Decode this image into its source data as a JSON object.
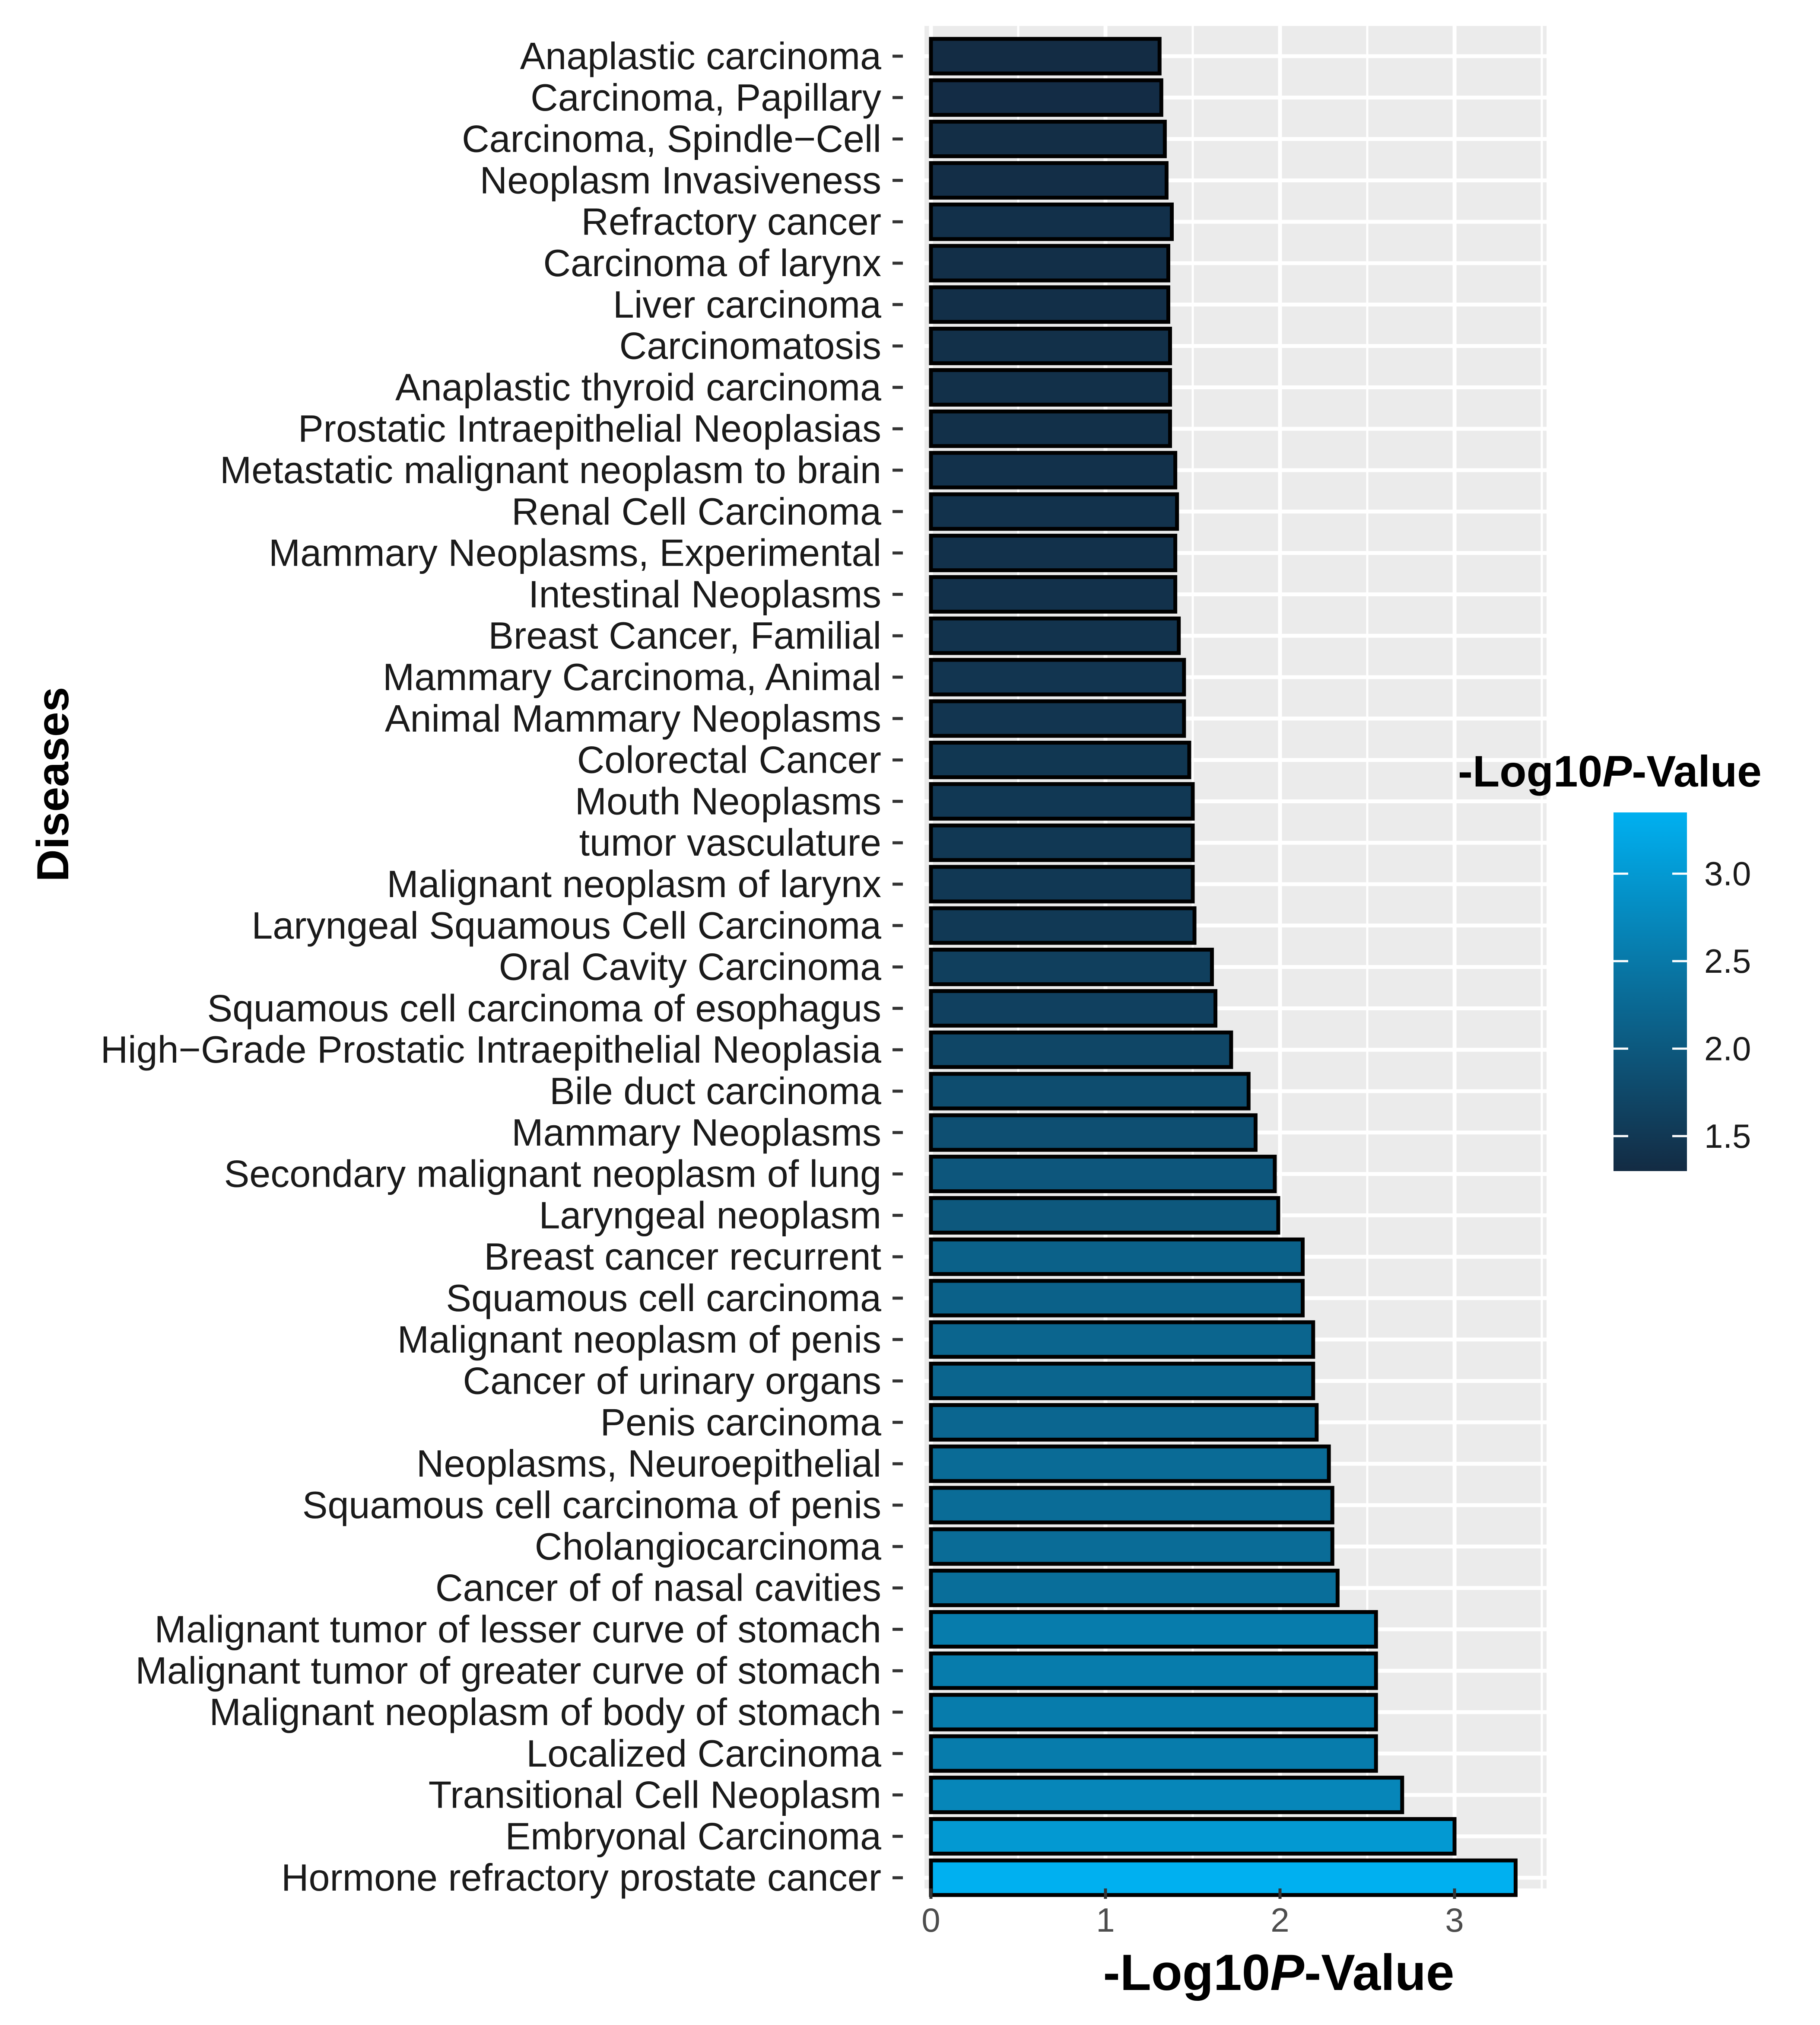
{
  "chart_data": {
    "type": "bar",
    "orientation": "horizontal",
    "title": "",
    "xlabel": "-Log10P-Value",
    "xlabel_parts": {
      "prefix": "-Log10",
      "italic": "P",
      "suffix": "-Value"
    },
    "ylabel": "Diseases",
    "xlim": [
      0,
      3.5
    ],
    "x_ticks": [
      0,
      1,
      2,
      3
    ],
    "grid": true,
    "legend": {
      "title": "-Log10P-Value",
      "title_parts": {
        "prefix": "-Log10",
        "italic": "P",
        "suffix": "-Value"
      },
      "placement": "right",
      "range": [
        1.3,
        3.35
      ],
      "ticks": [
        1.5,
        2.0,
        2.5,
        3.0
      ],
      "tick_labels": [
        "1.5",
        "2.0",
        "2.5",
        "3.0"
      ],
      "color_low": "#132B43",
      "color_high": "#00B0F0"
    },
    "categories": [
      "Anaplastic carcinoma",
      "Carcinoma, Papillary",
      "Carcinoma, Spindle−Cell",
      "Neoplasm Invasiveness",
      "Refractory cancer",
      "Carcinoma of larynx",
      "Liver carcinoma",
      "Carcinomatosis",
      "Anaplastic thyroid carcinoma",
      "Prostatic Intraepithelial Neoplasias",
      "Metastatic malignant neoplasm to brain",
      "Renal Cell Carcinoma",
      "Mammary Neoplasms, Experimental",
      "Intestinal Neoplasms",
      "Breast Cancer, Familial",
      "Mammary Carcinoma, Animal",
      "Animal Mammary Neoplasms",
      "Colorectal Cancer",
      "Mouth Neoplasms",
      "tumor vasculature",
      "Malignant neoplasm of larynx",
      "Laryngeal Squamous Cell Carcinoma",
      "Oral Cavity Carcinoma",
      "Squamous cell carcinoma of esophagus",
      "High−Grade Prostatic Intraepithelial Neoplasia",
      "Bile duct carcinoma",
      "Mammary Neoplasms",
      "Secondary malignant neoplasm of lung",
      "Laryngeal neoplasm",
      "Breast cancer recurrent",
      "Squamous cell carcinoma",
      "Malignant neoplasm of penis",
      "Cancer of urinary organs",
      "Penis carcinoma",
      "Neoplasms, Neuroepithelial",
      "Squamous cell carcinoma of penis",
      "Cholangiocarcinoma",
      "Cancer of of nasal cavities",
      "Malignant tumor of lesser curve of stomach",
      "Malignant tumor of greater curve of stomach",
      "Malignant neoplasm of body of stomach",
      "Localized Carcinoma",
      "Transitional Cell Neoplasm",
      "Embryonal Carcinoma",
      "Hormone refractory prostate cancer"
    ],
    "values": [
      1.31,
      1.32,
      1.34,
      1.35,
      1.38,
      1.36,
      1.36,
      1.37,
      1.37,
      1.37,
      1.4,
      1.41,
      1.4,
      1.4,
      1.42,
      1.45,
      1.45,
      1.48,
      1.5,
      1.5,
      1.5,
      1.51,
      1.61,
      1.63,
      1.72,
      1.82,
      1.86,
      1.97,
      1.99,
      2.13,
      2.13,
      2.19,
      2.19,
      2.21,
      2.28,
      2.3,
      2.3,
      2.33,
      2.55,
      2.55,
      2.55,
      2.55,
      2.7,
      3.0,
      3.35
    ]
  }
}
